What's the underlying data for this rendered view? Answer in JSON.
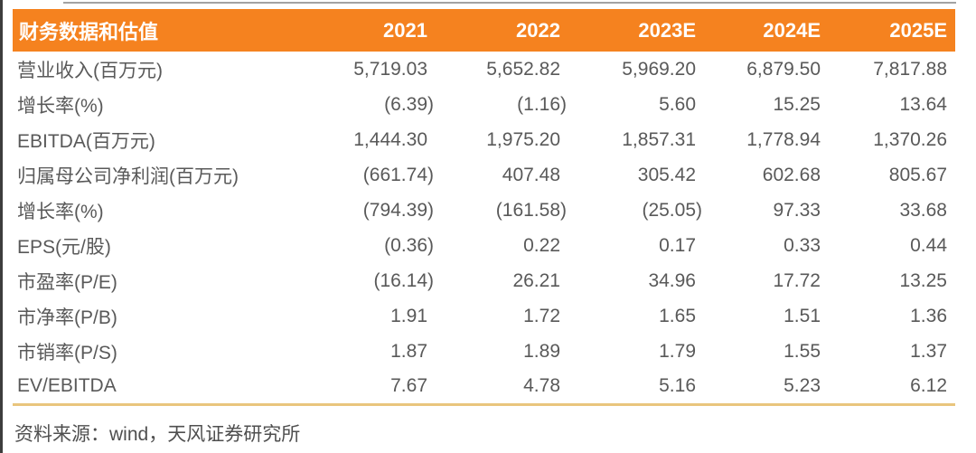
{
  "page": {
    "type": "research-report-table-snippet",
    "source_note": "资料来源：wind，天风证券研究所"
  },
  "colors": {
    "accent_orange": "#F5821F",
    "divider_gold": "#E9C57D",
    "body_text_gray": "#595959",
    "header_text": "#FFFFFF",
    "left_edge_line": "#3D3D3D",
    "top_hairline": "#A3A3A3"
  },
  "table": {
    "header": {
      "label": "财务数据和估值",
      "years": [
        "2021",
        "2022",
        "2023E",
        "2024E",
        "2025E"
      ]
    },
    "rows": [
      {
        "label": "营业收入(百万元)",
        "values": [
          "5,719.03",
          "5,652.82",
          "5,969.20",
          "6,879.50",
          "7,817.88"
        ]
      },
      {
        "label": "增长率(%)",
        "values": [
          "(6.39)",
          "(1.16)",
          "5.60",
          "15.25",
          "13.64"
        ]
      },
      {
        "label": "EBITDA(百万元)",
        "values": [
          "1,444.30",
          "1,975.20",
          "1,857.31",
          "1,778.94",
          "1,370.26"
        ]
      },
      {
        "label": "归属母公司净利润(百万元)",
        "values": [
          "(661.74)",
          "407.48",
          "305.42",
          "602.68",
          "805.67"
        ]
      },
      {
        "label": "增长率(%)",
        "values": [
          "(794.39)",
          "(161.58)",
          "(25.05)",
          "97.33",
          "33.68"
        ]
      },
      {
        "label": "EPS(元/股)",
        "values": [
          "(0.36)",
          "0.22",
          "0.17",
          "0.33",
          "0.44"
        ]
      },
      {
        "label": "市盈率(P/E)",
        "values": [
          "(16.14)",
          "26.21",
          "34.96",
          "17.72",
          "13.25"
        ]
      },
      {
        "label": "市净率(P/B)",
        "values": [
          "1.91",
          "1.72",
          "1.65",
          "1.51",
          "1.36"
        ]
      },
      {
        "label": "市销率(P/S)",
        "values": [
          "1.87",
          "1.89",
          "1.79",
          "1.55",
          "1.37"
        ]
      },
      {
        "label": "EV/EBITDA",
        "values": [
          "7.67",
          "4.78",
          "5.16",
          "5.23",
          "6.12"
        ]
      }
    ]
  }
}
